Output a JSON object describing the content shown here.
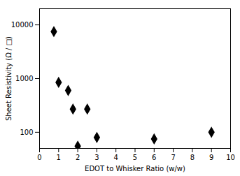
{
  "chart_data": {
    "type": "scatter",
    "x": [
      0.75,
      1.0,
      1.5,
      1.75,
      2.0,
      2.5,
      3.0,
      6.0,
      9.0
    ],
    "values": [
      7500,
      850,
      600,
      270,
      55,
      270,
      80,
      75,
      100
    ],
    "xlabel": "EDOT to Whisker Ratio (w/w)",
    "ylabel": "Sheet Resistivity (Ω / □)",
    "xlim": [
      0,
      10
    ],
    "ylim": [
      50,
      20000
    ],
    "xticks": [
      0,
      1,
      2,
      3,
      4,
      5,
      6,
      7,
      8,
      9,
      10
    ],
    "yticks": [
      100,
      1000,
      10000
    ],
    "log": "y",
    "marker": "diamond",
    "color": "black"
  }
}
